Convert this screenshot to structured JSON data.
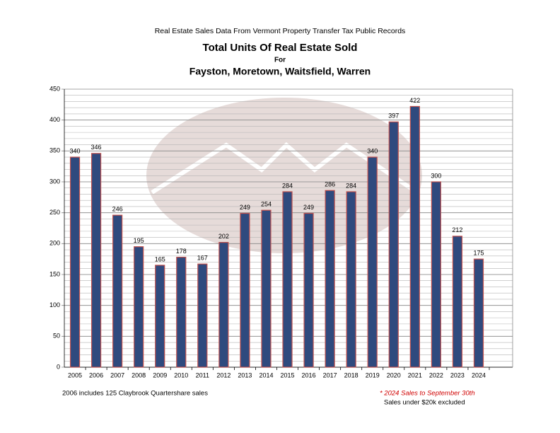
{
  "chart_data": {
    "type": "bar",
    "header": "Real Estate Sales Data From Vermont Property Transfer Tax Public Records",
    "title": "Total Units Of Real Estate Sold",
    "subtitle": "For",
    "subtitle2": "Fayston, Moretown, Waitsfield, Warren",
    "categories": [
      "2005",
      "2006",
      "2007",
      "2008",
      "2009",
      "2010",
      "2011",
      "2012",
      "2013",
      "2014",
      "2015",
      "2016",
      "2017",
      "2018",
      "2019",
      "2020",
      "2021",
      "2022",
      "2023",
      "2024"
    ],
    "values": [
      340,
      346,
      246,
      195,
      165,
      178,
      167,
      202,
      249,
      254,
      284,
      249,
      286,
      284,
      340,
      397,
      422,
      300,
      212,
      175
    ],
    "color": "#2f4a7e",
    "edge_color": "#c0504d",
    "ylim": [
      0,
      450
    ],
    "yticks": [
      0,
      50,
      100,
      150,
      200,
      250,
      300,
      350,
      400,
      450
    ],
    "grid": true,
    "minor_grid_step": 10,
    "notes": [
      "2006 includes 125 Claybrook Quartershare sales",
      "* 2024 Sales to September 30th",
      "Sales under $20k excluded"
    ]
  }
}
